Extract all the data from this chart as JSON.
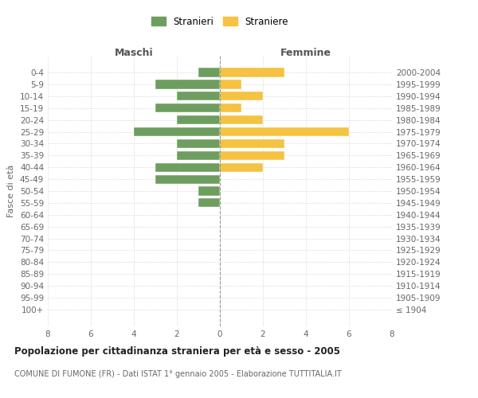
{
  "age_groups": [
    "0-4",
    "5-9",
    "10-14",
    "15-19",
    "20-24",
    "25-29",
    "30-34",
    "35-39",
    "40-44",
    "45-49",
    "50-54",
    "55-59",
    "60-64",
    "65-69",
    "70-74",
    "75-79",
    "80-84",
    "85-89",
    "90-94",
    "95-99",
    "100+"
  ],
  "birth_years": [
    "2000-2004",
    "1995-1999",
    "1990-1994",
    "1985-1989",
    "1980-1984",
    "1975-1979",
    "1970-1974",
    "1965-1969",
    "1960-1964",
    "1955-1959",
    "1950-1954",
    "1945-1949",
    "1940-1944",
    "1935-1939",
    "1930-1934",
    "1925-1929",
    "1920-1924",
    "1915-1919",
    "1910-1914",
    "1905-1909",
    "≤ 1904"
  ],
  "maschi": [
    1,
    3,
    2,
    3,
    2,
    4,
    2,
    2,
    3,
    3,
    1,
    1,
    0,
    0,
    0,
    0,
    0,
    0,
    0,
    0,
    0
  ],
  "femmine": [
    3,
    1,
    2,
    1,
    2,
    6,
    3,
    3,
    2,
    0,
    0,
    0,
    0,
    0,
    0,
    0,
    0,
    0,
    0,
    0,
    0
  ],
  "color_maschi": "#6d9e5f",
  "color_femmine": "#f5c242",
  "title": "Popolazione per cittadinanza straniera per età e sesso - 2005",
  "subtitle": "COMUNE DI FUMONE (FR) - Dati ISTAT 1° gennaio 2005 - Elaborazione TUTTITALIA.IT",
  "xlabel_left": "Maschi",
  "xlabel_right": "Femmine",
  "ylabel_left": "Fasce di età",
  "legend_maschi": "Stranieri",
  "legend_femmine": "Straniere",
  "xlim": 8,
  "bg_color": "#ffffff",
  "grid_color": "#cccccc",
  "bar_edge_color": "#ffffff"
}
